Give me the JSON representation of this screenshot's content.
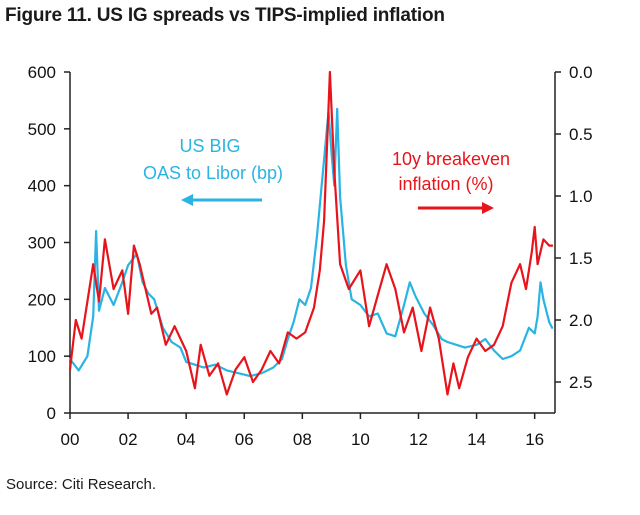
{
  "title": "Figure 11. US IG spreads vs TIPS-implied inflation",
  "source": "Source: Citi Research.",
  "colors": {
    "oas": "#2ab4e3",
    "breakeven": "#e8141b",
    "axis": "#222222",
    "text": "#111111"
  },
  "chart_data": {
    "type": "line",
    "title": "Figure 11. US IG spreads vs TIPS-implied inflation",
    "x_ticks": [
      "00",
      "02",
      "04",
      "06",
      "08",
      "10",
      "12",
      "14",
      "16"
    ],
    "x_range": [
      2000,
      2016.7
    ],
    "left_axis": {
      "range": [
        0,
        600
      ],
      "ticks": [
        "0",
        "100",
        "200",
        "300",
        "400",
        "500",
        "600"
      ]
    },
    "right_axis": {
      "range": [
        0.0,
        2.75
      ],
      "inverted": true,
      "ticks": [
        "0.0",
        "0.5",
        "1.0",
        "1.5",
        "2.0",
        "2.5"
      ]
    },
    "annotations": {
      "oas_line1": "US BIG",
      "oas_line2": "OAS to Libor (bp)",
      "be_line1": "10y breakeven",
      "be_line2": "inflation (%)"
    },
    "series": [
      {
        "name": "US BIG OAS to Libor (bp)",
        "axis": "left",
        "x": [
          2000.0,
          2000.3,
          2000.6,
          2000.8,
          2000.9,
          2001.0,
          2001.2,
          2001.5,
          2001.8,
          2002.0,
          2002.3,
          2002.5,
          2002.7,
          2002.9,
          2003.2,
          2003.5,
          2003.8,
          2004.0,
          2004.3,
          2004.6,
          2005.0,
          2005.4,
          2005.8,
          2006.2,
          2006.6,
          2007.0,
          2007.3,
          2007.5,
          2007.7,
          2007.9,
          2008.1,
          2008.3,
          2008.5,
          2008.7,
          2008.9,
          2009.0,
          2009.1,
          2009.2,
          2009.3,
          2009.5,
          2009.7,
          2010.0,
          2010.3,
          2010.6,
          2010.9,
          2011.2,
          2011.5,
          2011.7,
          2011.9,
          2012.2,
          2012.5,
          2012.8,
          2013.0,
          2013.3,
          2013.6,
          2014.0,
          2014.3,
          2014.6,
          2014.9,
          2015.2,
          2015.5,
          2015.8,
          2016.0,
          2016.1,
          2016.2,
          2016.3,
          2016.5,
          2016.6
        ],
        "values": [
          95,
          75,
          100,
          170,
          320,
          180,
          220,
          190,
          230,
          260,
          280,
          230,
          210,
          200,
          150,
          125,
          115,
          90,
          85,
          80,
          85,
          75,
          70,
          65,
          70,
          80,
          95,
          130,
          160,
          200,
          190,
          220,
          310,
          420,
          530,
          460,
          400,
          535,
          380,
          260,
          200,
          190,
          170,
          175,
          140,
          135,
          190,
          230,
          205,
          175,
          155,
          130,
          125,
          120,
          115,
          120,
          130,
          110,
          95,
          100,
          110,
          150,
          140,
          170,
          230,
          200,
          160,
          150
        ]
      },
      {
        "name": "10y breakeven inflation (%)",
        "axis": "right",
        "x": [
          2000.0,
          2000.2,
          2000.4,
          2000.6,
          2000.8,
          2001.0,
          2001.2,
          2001.5,
          2001.8,
          2002.0,
          2002.2,
          2002.4,
          2002.6,
          2002.8,
          2003.0,
          2003.3,
          2003.6,
          2004.0,
          2004.3,
          2004.5,
          2004.8,
          2005.1,
          2005.4,
          2005.7,
          2006.0,
          2006.3,
          2006.6,
          2006.9,
          2007.2,
          2007.5,
          2007.8,
          2008.1,
          2008.4,
          2008.6,
          2008.75,
          2008.85,
          2008.95,
          2009.1,
          2009.3,
          2009.6,
          2010.0,
          2010.3,
          2010.6,
          2010.9,
          2011.2,
          2011.5,
          2011.8,
          2012.1,
          2012.4,
          2012.7,
          2013.0,
          2013.2,
          2013.4,
          2013.7,
          2014.0,
          2014.3,
          2014.6,
          2014.9,
          2015.2,
          2015.5,
          2015.7,
          2015.9,
          2016.0,
          2016.1,
          2016.3,
          2016.5,
          2016.6
        ],
        "values": [
          2.4,
          2.0,
          2.15,
          1.85,
          1.55,
          1.85,
          1.35,
          1.75,
          1.6,
          1.95,
          1.4,
          1.55,
          1.75,
          1.95,
          1.9,
          2.2,
          2.05,
          2.25,
          2.55,
          2.2,
          2.45,
          2.35,
          2.6,
          2.4,
          2.3,
          2.5,
          2.4,
          2.25,
          2.35,
          2.1,
          2.15,
          2.1,
          1.9,
          1.6,
          1.2,
          0.6,
          0.0,
          0.8,
          1.55,
          1.75,
          1.6,
          2.05,
          1.8,
          1.55,
          1.75,
          2.1,
          1.9,
          2.25,
          1.9,
          2.15,
          2.6,
          2.35,
          2.55,
          2.3,
          2.15,
          2.25,
          2.2,
          2.05,
          1.7,
          1.55,
          1.75,
          1.45,
          1.25,
          1.55,
          1.35,
          1.4,
          1.4
        ]
      }
    ]
  }
}
